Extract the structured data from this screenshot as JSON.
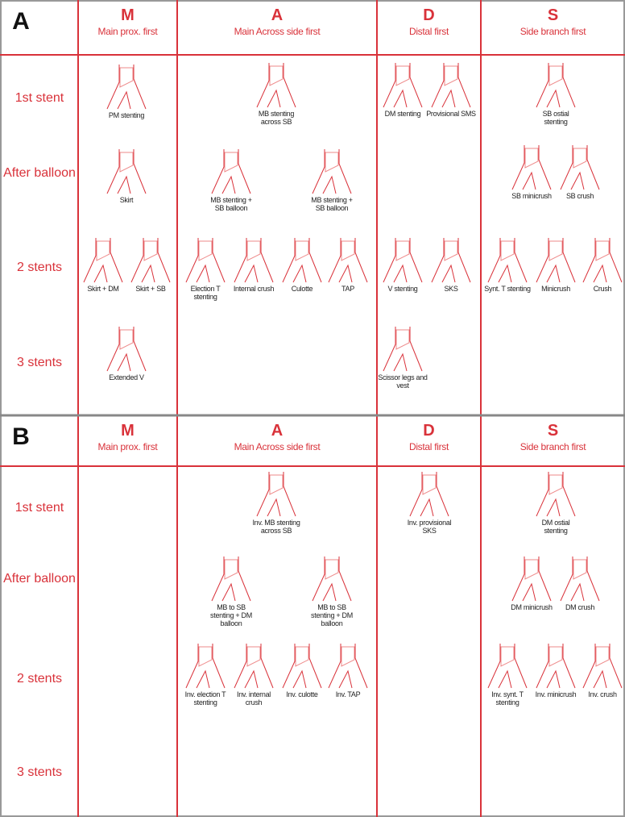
{
  "panels": [
    {
      "label": "A",
      "columns": [
        {
          "letter": "M",
          "title": "Main prox. first"
        },
        {
          "letter": "A",
          "title": "Main Across side first"
        },
        {
          "letter": "D",
          "title": "Distal first"
        },
        {
          "letter": "S",
          "title": "Side branch first"
        }
      ],
      "rows": [
        "1st stent",
        "After balloon",
        "2 stents",
        "3 stents"
      ],
      "figures": [
        "PM stenting",
        "MB stenting across SB",
        "DM stenting",
        "Provisional SMS",
        "SB ostial stenting",
        "Skirt",
        "MB stenting + SB balloon",
        "MB stenting + SB balloon",
        "SB minicrush",
        "SB crush",
        "Skirt + DM",
        "Skirt + SB",
        "Election T stenting",
        "Internal crush",
        "Culotte",
        "TAP",
        "V stenting",
        "SKS",
        "Synt. T stenting",
        "Minicrush",
        "Crush",
        "Extended V",
        "Scissor legs and vest"
      ]
    },
    {
      "label": "B",
      "columns": [
        {
          "letter": "M",
          "title": "Main prox. first"
        },
        {
          "letter": "A",
          "title": "Main Across side first"
        },
        {
          "letter": "D",
          "title": "Distal first"
        },
        {
          "letter": "S",
          "title": "Side branch first"
        }
      ],
      "rows": [
        "1st stent",
        "After balloon",
        "2 stents",
        "3 stents"
      ],
      "figures": [
        "Inv. MB stenting across SB",
        "Inv. provisional SKS",
        "DM ostial stenting",
        "MB to SB stenting + DM balloon",
        "MB to SB stenting + DM balloon",
        "DM minicrush",
        "DM crush",
        "Inv. election T stenting",
        "Inv. internal crush",
        "Inv. culotte",
        "Inv. TAP",
        "Inv. synt. T stenting",
        "Inv. minicrush",
        "Inv. crush"
      ]
    }
  ]
}
